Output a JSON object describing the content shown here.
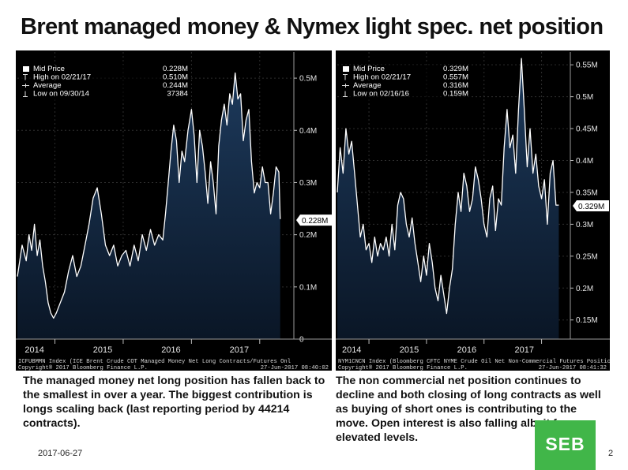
{
  "title": "Brent managed money & Nymex light spec. net position",
  "chart_data": [
    {
      "type": "area",
      "legend": {
        "rows": [
          {
            "label": "Mid Price",
            "value": "0.228M"
          },
          {
            "label": "High on 02/21/17",
            "value": "0.510M"
          },
          {
            "label": "Average",
            "value": "0.244M"
          },
          {
            "label": "Low on 09/30/14",
            "value": "37384"
          }
        ]
      },
      "last_value_label": "0.228M",
      "last_value": 0.228,
      "ylim": [
        0,
        0.55
      ],
      "xlim": [
        2013.45,
        2017.5
      ],
      "yticks": [
        {
          "v": 0,
          "label": "0"
        },
        {
          "v": 0.1,
          "label": "0.1M"
        },
        {
          "v": 0.2,
          "label": "0.2M"
        },
        {
          "v": 0.3,
          "label": "0.3M"
        },
        {
          "v": 0.4,
          "label": "0.4M"
        },
        {
          "v": 0.5,
          "label": "0.5M"
        }
      ],
      "xticks": [
        {
          "v": 2013.7,
          "label": "2014"
        },
        {
          "v": 2014.7,
          "label": "2015"
        },
        {
          "v": 2015.7,
          "label": "2016"
        },
        {
          "v": 2016.7,
          "label": "2017"
        }
      ],
      "x": [
        2013.45,
        2013.52,
        2013.58,
        2013.62,
        2013.66,
        2013.7,
        2013.74,
        2013.78,
        2013.82,
        2013.86,
        2013.9,
        2013.94,
        2013.98,
        2014.02,
        2014.08,
        2014.14,
        2014.2,
        2014.26,
        2014.32,
        2014.38,
        2014.44,
        2014.5,
        2014.56,
        2014.62,
        2014.68,
        2014.74,
        2014.8,
        2014.86,
        2014.92,
        2014.98,
        2015.04,
        2015.1,
        2015.16,
        2015.22,
        2015.28,
        2015.34,
        2015.4,
        2015.46,
        2015.52,
        2015.58,
        2015.62,
        2015.66,
        2015.7,
        2015.74,
        2015.78,
        2015.82,
        2015.86,
        2015.9,
        2015.95,
        2016.0,
        2016.04,
        2016.08,
        2016.12,
        2016.16,
        2016.2,
        2016.24,
        2016.28,
        2016.32,
        2016.36,
        2016.4,
        2016.44,
        2016.48,
        2016.52,
        2016.56,
        2016.6,
        2016.64,
        2016.68,
        2016.72,
        2016.76,
        2016.8,
        2016.84,
        2016.88,
        2016.92,
        2016.96,
        2017.0,
        2017.04,
        2017.08,
        2017.12,
        2017.16,
        2017.2,
        2017.24,
        2017.28,
        2017.3
      ],
      "values": [
        0.12,
        0.18,
        0.15,
        0.2,
        0.17,
        0.22,
        0.16,
        0.19,
        0.14,
        0.11,
        0.07,
        0.05,
        0.04,
        0.05,
        0.07,
        0.09,
        0.13,
        0.16,
        0.12,
        0.14,
        0.18,
        0.22,
        0.27,
        0.29,
        0.24,
        0.18,
        0.16,
        0.18,
        0.14,
        0.16,
        0.17,
        0.14,
        0.18,
        0.15,
        0.2,
        0.17,
        0.21,
        0.18,
        0.2,
        0.19,
        0.24,
        0.3,
        0.36,
        0.41,
        0.38,
        0.3,
        0.36,
        0.34,
        0.4,
        0.44,
        0.39,
        0.3,
        0.4,
        0.37,
        0.32,
        0.26,
        0.34,
        0.3,
        0.24,
        0.37,
        0.42,
        0.45,
        0.41,
        0.47,
        0.45,
        0.51,
        0.46,
        0.47,
        0.38,
        0.42,
        0.44,
        0.34,
        0.28,
        0.3,
        0.29,
        0.33,
        0.3,
        0.3,
        0.24,
        0.28,
        0.33,
        0.32,
        0.23
      ],
      "index_text": "ICFUBMMN Index (ICE Brent Crude COT Managed Money Net Long Contracts/Futures Onl",
      "copyright": "Copyright® 2017 Bloomberg Finance L.P.",
      "timestamp": "27-Jun-2017 08:40:02"
    },
    {
      "type": "area",
      "legend": {
        "rows": [
          {
            "label": "Mid Price",
            "value": "0.329M"
          },
          {
            "label": "High on 02/21/17",
            "value": "0.557M"
          },
          {
            "label": "Average",
            "value": "0.316M"
          },
          {
            "label": "Low on 02/16/16",
            "value": "0.159M"
          }
        ]
      },
      "last_value_label": "0.329M",
      "last_value": 0.329,
      "ylim": [
        0.12,
        0.57
      ],
      "xlim": [
        2013.45,
        2017.5
      ],
      "yticks": [
        {
          "v": 0.15,
          "label": "0.15M"
        },
        {
          "v": 0.2,
          "label": "0.2M"
        },
        {
          "v": 0.25,
          "label": "0.25M"
        },
        {
          "v": 0.3,
          "label": "0.3M"
        },
        {
          "v": 0.35,
          "label": "0.35M"
        },
        {
          "v": 0.4,
          "label": "0.4M"
        },
        {
          "v": 0.45,
          "label": "0.45M"
        },
        {
          "v": 0.5,
          "label": "0.5M"
        },
        {
          "v": 0.55,
          "label": "0.55M"
        }
      ],
      "xticks": [
        {
          "v": 2013.7,
          "label": "2014"
        },
        {
          "v": 2014.7,
          "label": "2015"
        },
        {
          "v": 2015.7,
          "label": "2016"
        },
        {
          "v": 2016.7,
          "label": "2017"
        }
      ],
      "x": [
        2013.45,
        2013.5,
        2013.55,
        2013.6,
        2013.65,
        2013.7,
        2013.75,
        2013.8,
        2013.85,
        2013.9,
        2013.95,
        2014.0,
        2014.05,
        2014.1,
        2014.15,
        2014.2,
        2014.25,
        2014.3,
        2014.35,
        2014.4,
        2014.45,
        2014.5,
        2014.55,
        2014.6,
        2014.65,
        2014.7,
        2014.75,
        2014.8,
        2014.85,
        2014.9,
        2014.95,
        2015.0,
        2015.05,
        2015.1,
        2015.15,
        2015.2,
        2015.25,
        2015.3,
        2015.35,
        2015.4,
        2015.45,
        2015.5,
        2015.55,
        2015.6,
        2015.65,
        2015.7,
        2015.75,
        2015.8,
        2015.85,
        2015.9,
        2015.95,
        2016.0,
        2016.05,
        2016.1,
        2016.15,
        2016.2,
        2016.25,
        2016.3,
        2016.35,
        2016.4,
        2016.45,
        2016.5,
        2016.55,
        2016.6,
        2016.65,
        2016.7,
        2016.75,
        2016.8,
        2016.85,
        2016.9,
        2016.95,
        2017.0,
        2017.05,
        2017.1,
        2017.15,
        2017.2,
        2017.25,
        2017.3
      ],
      "values": [
        0.35,
        0.42,
        0.38,
        0.45,
        0.41,
        0.43,
        0.38,
        0.33,
        0.28,
        0.3,
        0.26,
        0.27,
        0.24,
        0.28,
        0.25,
        0.27,
        0.26,
        0.28,
        0.25,
        0.3,
        0.26,
        0.33,
        0.35,
        0.34,
        0.3,
        0.28,
        0.31,
        0.27,
        0.24,
        0.21,
        0.25,
        0.22,
        0.27,
        0.24,
        0.2,
        0.18,
        0.22,
        0.19,
        0.16,
        0.2,
        0.23,
        0.3,
        0.35,
        0.32,
        0.38,
        0.36,
        0.32,
        0.34,
        0.39,
        0.37,
        0.34,
        0.3,
        0.28,
        0.34,
        0.36,
        0.29,
        0.34,
        0.33,
        0.42,
        0.48,
        0.42,
        0.44,
        0.38,
        0.48,
        0.56,
        0.48,
        0.39,
        0.45,
        0.38,
        0.41,
        0.36,
        0.34,
        0.37,
        0.3,
        0.38,
        0.4,
        0.33,
        0.33
      ],
      "index_text": "NYM1CNCN Index (Bloomberg CFTC NYME Crude Oil Net Non-Commercial Futures Positio",
      "copyright": "Copyright® 2017 Bloomberg Finance L.P.",
      "timestamp": "27-Jun-2017 08:41:32"
    }
  ],
  "captions": {
    "left": "The managed money net long position has fallen back to the smallest in over a year. The biggest contribution is longs scaling back (last reporting period by 44214 contracts).",
    "right": "The non commercial net position continues to decline and both closing of long contracts as well as buying of short ones is contributing to the move. Open interest is also falling albeit from elevated levels."
  },
  "footer": {
    "date": "2017-06-27",
    "page": "2",
    "logo": "SEB"
  },
  "colors": {
    "chart_bg": "#000000",
    "area_top": "#1d3a5c",
    "area_bottom": "#0a1626",
    "line": "#ffffff",
    "brand_green": "#41b649"
  }
}
